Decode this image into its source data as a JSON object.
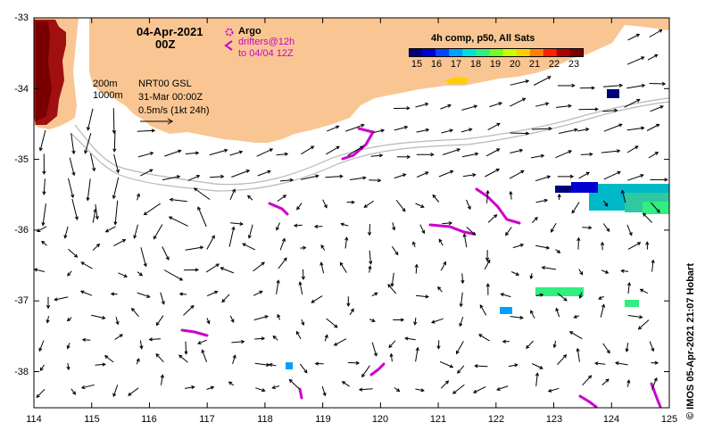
{
  "colors": {
    "land": "#f9c693",
    "shelf": "#bbbbbb",
    "arrow": "#000000",
    "drifter": "#cc00cc",
    "frame": "#000000"
  },
  "header": {
    "date": "04-Apr-2021",
    "time": "00Z"
  },
  "legend": {
    "argo_label": "Argo",
    "argo_icon": "circle-marker",
    "drifter_icon": "chevron-marker",
    "drifter_line1": "drifters@12h",
    "drifter_line2": "to 04/04 12Z",
    "iso_200": "200m",
    "iso_1000": "1000m",
    "product": "NRT00 GSL",
    "ref_time": "31-Mar 00:00Z",
    "vector_scale": "0.5m/s (1kt 24h)"
  },
  "colorbar": {
    "title": "4h comp, p50, All Sats",
    "ticks": [
      "15",
      "16",
      "17",
      "18",
      "19",
      "20",
      "21",
      "22",
      "23"
    ],
    "colors": [
      "#00007a",
      "#0000d0",
      "#0046ff",
      "#00a0ff",
      "#00e0d8",
      "#30ee80",
      "#70ff20",
      "#c8ff00",
      "#ffd000",
      "#ff8000",
      "#ff2000",
      "#b00000",
      "#7a0000"
    ]
  },
  "axes": {
    "lon_ticks": [
      "114",
      "115",
      "116",
      "117",
      "118",
      "119",
      "120",
      "121",
      "122",
      "123",
      "124",
      "125"
    ],
    "lat_ticks": [
      "-33",
      "-34",
      "-35",
      "-36",
      "-37",
      "-38"
    ]
  },
  "credit": "© IMOS 05-Apr-2021 21:07 Hobart"
}
